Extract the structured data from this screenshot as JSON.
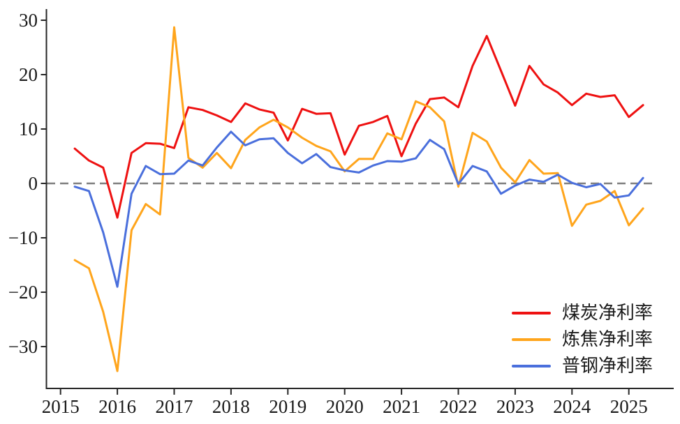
{
  "figure": {
    "background": "#ffffff"
  },
  "axes": {
    "x_tick_labels": [
      "2015",
      "2016",
      "2017",
      "2018",
      "2019",
      "2020",
      "2021",
      "2022",
      "2023",
      "2024",
      "2025"
    ],
    "y_tick_values": [
      -30,
      -20,
      -10,
      0,
      10,
      20,
      30
    ],
    "y_tick_labels": [
      "−30",
      "−20",
      "−10",
      "0",
      "10",
      "20",
      "30"
    ]
  },
  "chart_data": {
    "type": "line",
    "title": "",
    "xlabel": "",
    "ylabel": "",
    "x_start": 2015.25,
    "x_step": 0.25,
    "x_tick_years": [
      2015,
      2016,
      2017,
      2018,
      2019,
      2020,
      2021,
      2022,
      2023,
      2024,
      2025
    ],
    "ylim": [
      -38,
      32
    ],
    "grid": false,
    "legend_position": "lower-right",
    "zero_line": {
      "y": 0,
      "style": "dashed",
      "color": "#7f7f7f"
    },
    "series": [
      {
        "name": "煤炭净利率",
        "color": "#ee1111",
        "values": [
          6.4,
          4.2,
          2.9,
          -6.3,
          5.6,
          7.4,
          7.3,
          6.5,
          14.0,
          13.5,
          12.5,
          11.3,
          14.7,
          13.6,
          13.0,
          7.9,
          13.7,
          12.8,
          12.9,
          5.3,
          10.6,
          11.3,
          12.4,
          5.0,
          11.0,
          15.5,
          15.8,
          14.0,
          21.6,
          27.1,
          20.7,
          14.3,
          21.6,
          18.2,
          16.7,
          14.4,
          16.5,
          15.9,
          16.2,
          12.2,
          14.4
        ]
      },
      {
        "name": "炼焦净利率",
        "color": "#ffa51c",
        "values": [
          -14.1,
          -15.6,
          -23.6,
          -34.5,
          -8.6,
          -3.8,
          -5.7,
          28.7,
          4.7,
          2.9,
          5.6,
          2.8,
          8.0,
          10.3,
          11.7,
          10.3,
          8.4,
          6.9,
          5.9,
          2.2,
          4.5,
          4.5,
          9.2,
          8.1,
          15.1,
          14.0,
          11.4,
          -0.6,
          9.3,
          7.7,
          2.9,
          0.2,
          4.3,
          1.8,
          1.9,
          -7.8,
          -3.9,
          -3.2,
          -1.4,
          -7.7,
          -4.6
        ]
      },
      {
        "name": "普钢净利率",
        "color": "#4a6fdc",
        "values": [
          -0.6,
          -1.4,
          -9.0,
          -19.0,
          -1.9,
          3.2,
          1.7,
          1.8,
          4.2,
          3.3,
          6.6,
          9.5,
          7.0,
          8.1,
          8.3,
          5.6,
          3.7,
          5.4,
          3.0,
          2.4,
          2.0,
          3.3,
          4.1,
          4.0,
          4.6,
          8.0,
          6.3,
          -0.1,
          3.2,
          2.2,
          -1.9,
          -0.4,
          0.7,
          0.3,
          1.6,
          0.1,
          -0.7,
          -0.1,
          -2.6,
          -2.2,
          1.0
        ]
      }
    ]
  }
}
